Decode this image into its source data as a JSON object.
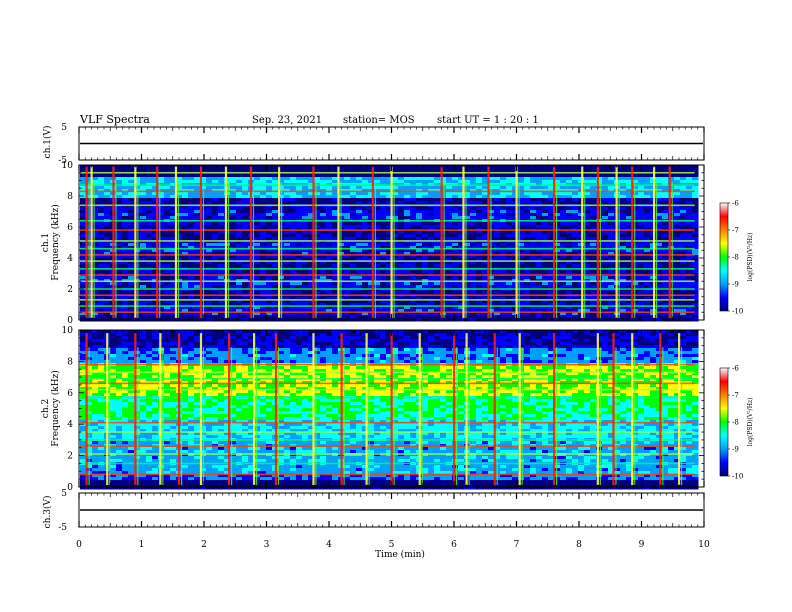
{
  "header": {
    "title": "VLF Spectra",
    "date": "Sep. 23, 2021",
    "station": "station= MOS",
    "start": "start  UT =   1 : 20 : 1"
  },
  "chart_data": {
    "type": "heatmap",
    "title": "VLF Spectra",
    "xlabel": "Time  (min)",
    "xlim": [
      0,
      10
    ],
    "x_ticks": [
      "0",
      "1",
      "2",
      "3",
      "4",
      "5",
      "6",
      "7",
      "8",
      "9",
      "10"
    ],
    "panels": [
      {
        "name": "ch.1(V)",
        "kind": "waveform",
        "ylabel": "ch.1(V)",
        "ylim": [
          -5,
          5
        ],
        "y_ticks": [
          "5",
          "-5"
        ],
        "value": 0
      },
      {
        "name": "ch.1",
        "kind": "spectrogram",
        "ylabel_channel": "ch.1",
        "ylabel": "Frequency  (kHz)",
        "ylim": [
          0,
          10
        ],
        "y_ticks": [
          "0",
          "2",
          "4",
          "6",
          "8",
          "10"
        ],
        "data_end_min": 9.85,
        "colorbar": {
          "label": "log(PSD)(V²/Hz)",
          "range": [
            -10,
            -6
          ],
          "ticks": [
            "-6",
            "-7",
            "-8",
            "-9",
            "-10"
          ]
        },
        "bands_khz": [
          0.5,
          0.9,
          1.3,
          1.6,
          2.0,
          2.5,
          2.9,
          3.3,
          3.8,
          4.2,
          4.6,
          5.1,
          5.8,
          6.4,
          7.4,
          8.3,
          8.7,
          9.5
        ],
        "bursts_min": [
          0.12,
          0.2,
          0.55,
          0.9,
          1.25,
          1.55,
          1.95,
          2.35,
          2.75,
          3.2,
          3.75,
          4.15,
          4.7,
          5.0,
          5.8,
          6.15,
          6.55,
          7.0,
          7.6,
          8.05,
          8.3,
          8.6,
          8.85,
          9.2,
          9.45
        ]
      },
      {
        "name": "ch.2",
        "kind": "spectrogram",
        "ylabel_channel": "ch.2",
        "ylabel": "Frequency  (kHz)",
        "ylim": [
          0,
          10
        ],
        "y_ticks": [
          "0",
          "2",
          "4",
          "6",
          "8",
          "10"
        ],
        "data_end_min": 9.85,
        "colorbar": {
          "label": "log(PSD)(V²/Hz)",
          "range": [
            -10,
            -6
          ],
          "ticks": [
            "-6",
            "-7",
            "-8",
            "-9",
            "-10"
          ]
        },
        "bands_khz": [
          0.8,
          1.5,
          2.1,
          2.6,
          3.0,
          3.5,
          4.1,
          5.7,
          6.2,
          6.6,
          6.9,
          7.3,
          7.8
        ],
        "bursts_min": [
          0.12,
          0.45,
          0.9,
          1.3,
          1.6,
          1.95,
          2.4,
          2.8,
          3.15,
          3.75,
          4.2,
          4.6,
          5.0,
          5.45,
          6.0,
          6.2,
          6.65,
          7.05,
          7.6,
          8.3,
          8.55,
          8.85,
          9.3,
          9.6
        ]
      },
      {
        "name": "ch.3(V)",
        "kind": "waveform",
        "ylabel": "ch.3(V)",
        "ylim": [
          -5,
          5
        ],
        "y_ticks": [
          "5",
          "-5"
        ],
        "value": 0
      }
    ]
  },
  "colors": {
    "colormap": [
      "#000080",
      "#0000ff",
      "#00a0ff",
      "#00ffff",
      "#00ff00",
      "#ffff00",
      "#ff8000",
      "#ff0000",
      "#ffffff"
    ]
  }
}
